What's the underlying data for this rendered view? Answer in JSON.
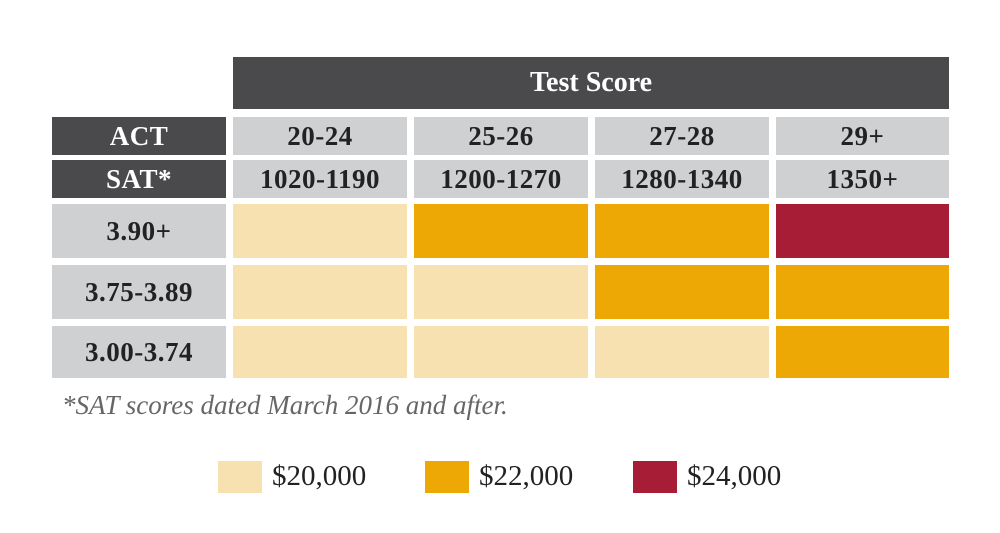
{
  "title": "Test Score",
  "row_headers": {
    "act": "ACT",
    "sat": "SAT*"
  },
  "act_ranges": [
    "20-24",
    "25-26",
    "27-28",
    "29+"
  ],
  "sat_ranges": [
    "1020-1190",
    "1200-1270",
    "1280-1340",
    "1350+"
  ],
  "gpa_rows": [
    {
      "gpa": "3.90+",
      "awards": [
        "$20,000",
        "$22,000",
        "$22,000",
        "$24,000"
      ]
    },
    {
      "gpa": "3.75-3.89",
      "awards": [
        "$20,000",
        "$20,000",
        "$22,000",
        "$22,000"
      ]
    },
    {
      "gpa": "3.00-3.74",
      "awards": [
        "$20,000",
        "$20,000",
        "$20,000",
        "$22,000"
      ]
    }
  ],
  "footnote": "*SAT scores dated March 2016 and after.",
  "legend": [
    {
      "label": "$20,000",
      "color": "#f8e1b0"
    },
    {
      "label": "$22,000",
      "color": "#eea806"
    },
    {
      "label": "$24,000",
      "color": "#a61d35"
    }
  ]
}
